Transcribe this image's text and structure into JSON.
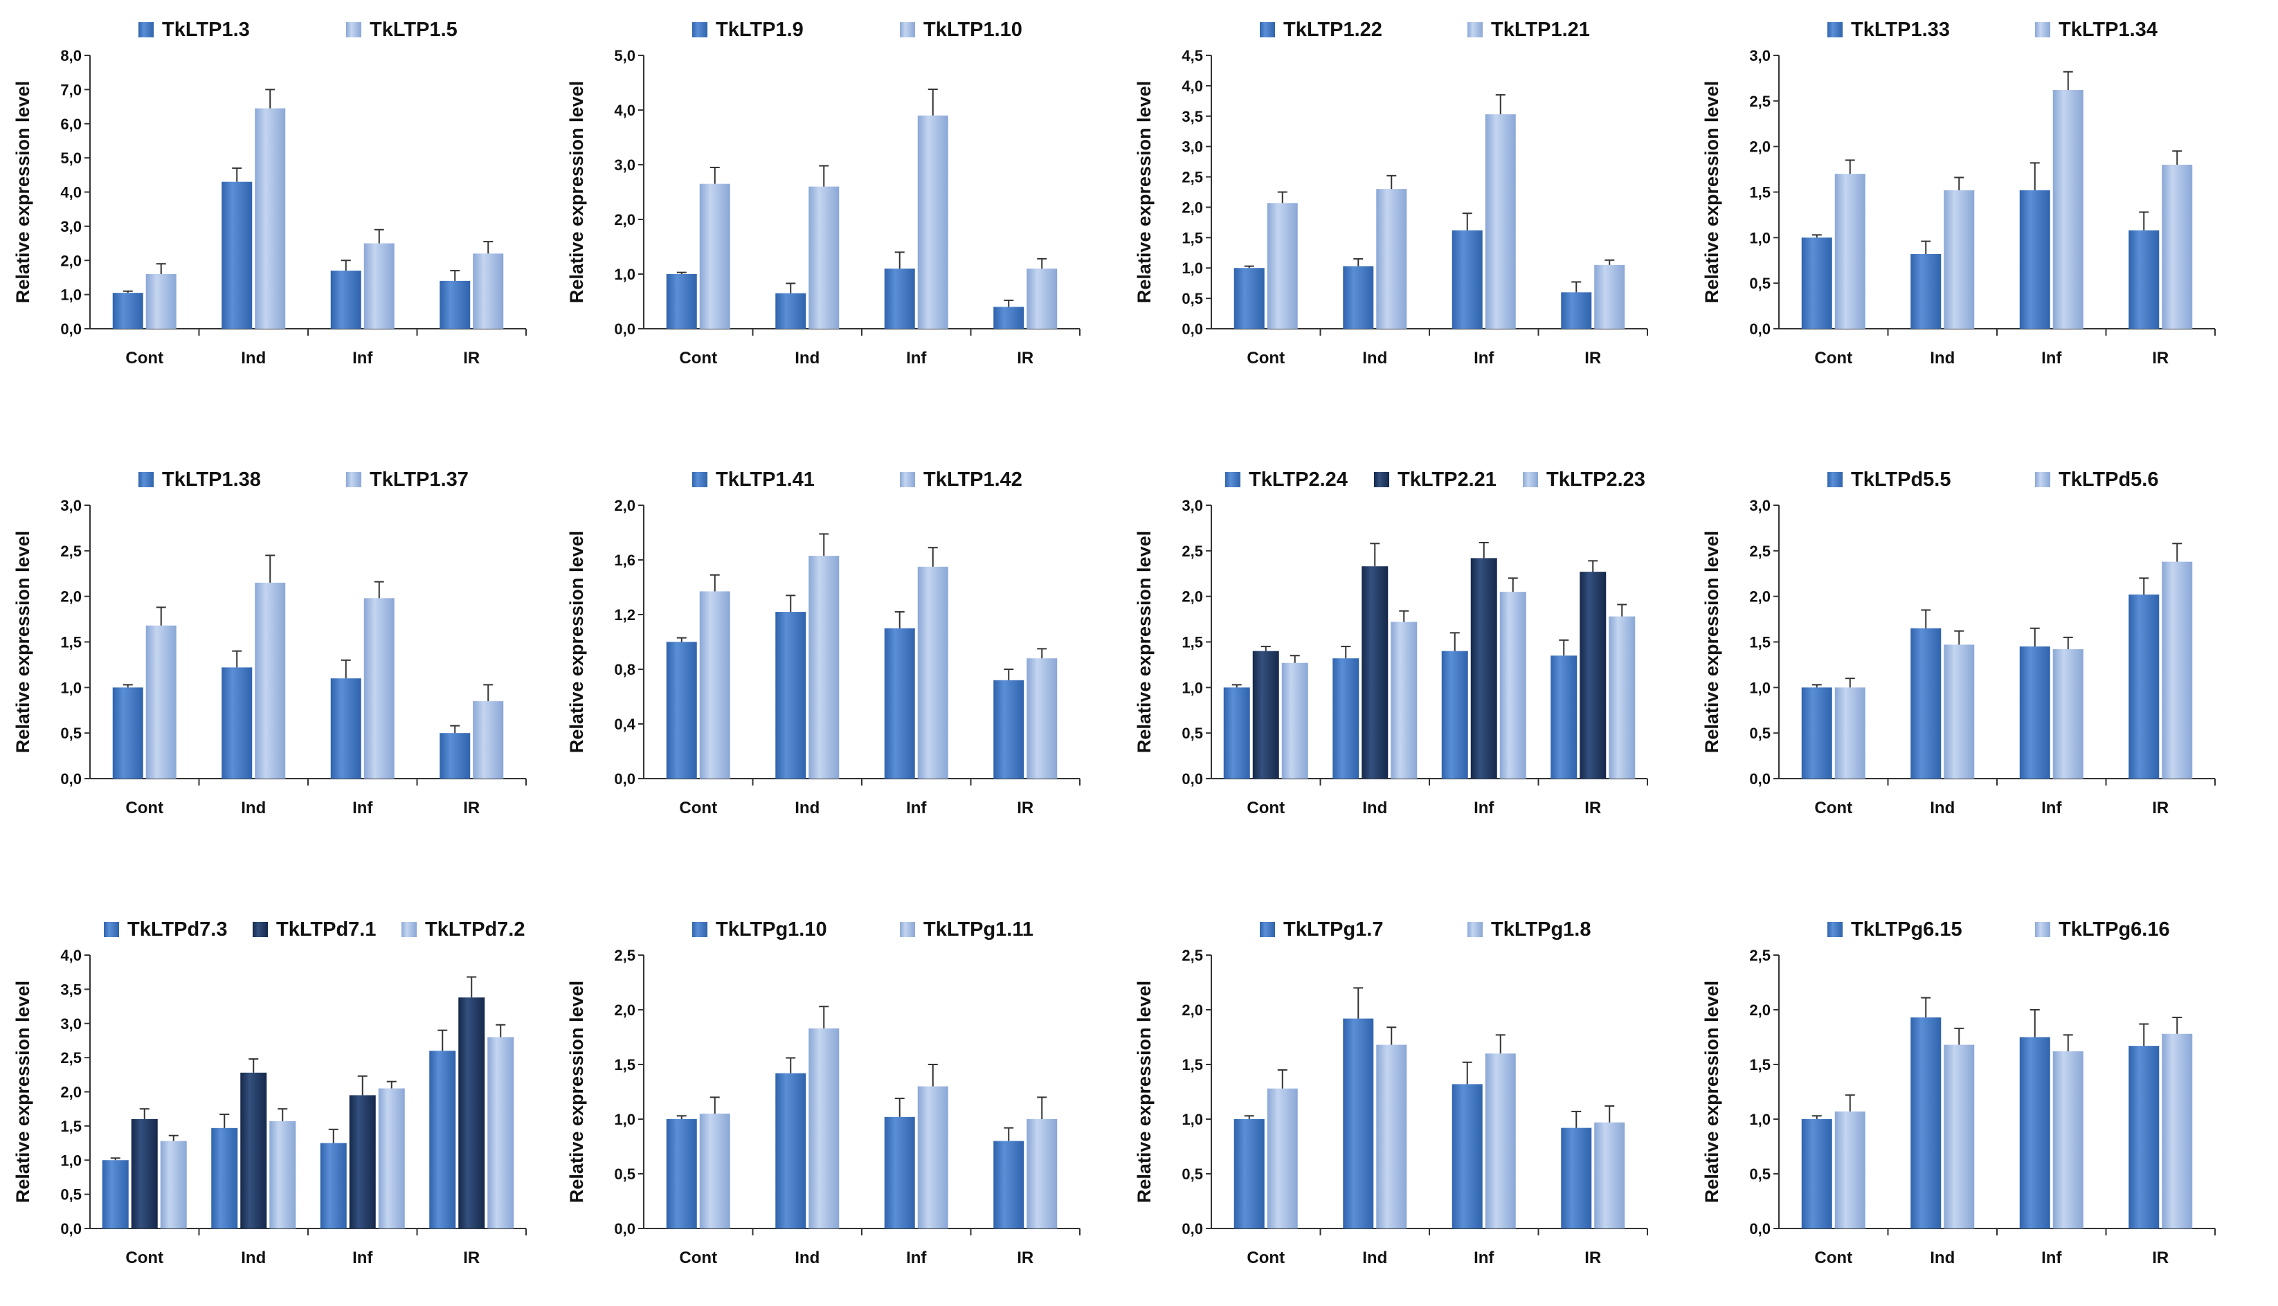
{
  "figure": {
    "colors": {
      "series1": "#2f63ad",
      "series1_light": "#5a8fd6",
      "series2": "#8aa7d6",
      "series2_light": "#c4d5f0",
      "dark": "#15284a",
      "dark_light": "#34507e",
      "axis": "#333333"
    },
    "chart_data": [
      {
        "type": "bar",
        "title": "",
        "ylabel": "Relative expression level",
        "categories": [
          "Cont",
          "Ind",
          "Inf",
          "IR"
        ],
        "ylim": [
          0,
          8
        ],
        "yticks": [
          "0,0",
          "1,0",
          "2,0",
          "3,0",
          "4,0",
          "5,0",
          "6,0",
          "7,0",
          "8,0"
        ],
        "series": [
          {
            "name": "TkLTP1.3",
            "color": "series1",
            "values": [
              1.05,
              4.3,
              1.7,
              1.4
            ],
            "errors": [
              0.05,
              0.4,
              0.3,
              0.3
            ]
          },
          {
            "name": "TkLTP1.5",
            "color": "series2",
            "values": [
              1.6,
              6.45,
              2.5,
              2.2
            ],
            "errors": [
              0.3,
              0.55,
              0.4,
              0.35
            ]
          }
        ]
      },
      {
        "type": "bar",
        "title": "",
        "ylabel": "Relative expression level",
        "categories": [
          "Cont",
          "Ind",
          "Inf",
          "IR"
        ],
        "ylim": [
          0,
          5
        ],
        "yticks": [
          "0,0",
          "1,0",
          "2,0",
          "3,0",
          "4,0",
          "5,0"
        ],
        "series": [
          {
            "name": "TkLTP1.9",
            "color": "series1",
            "values": [
              1.0,
              0.65,
              1.1,
              0.4
            ],
            "errors": [
              0.03,
              0.18,
              0.3,
              0.12
            ]
          },
          {
            "name": "TkLTP1.10",
            "color": "series2",
            "values": [
              2.65,
              2.6,
              3.9,
              1.1
            ],
            "errors": [
              0.3,
              0.38,
              0.48,
              0.18
            ]
          }
        ]
      },
      {
        "type": "bar",
        "title": "",
        "ylabel": "Relative expression level",
        "categories": [
          "Cont",
          "Ind",
          "Inf",
          "IR"
        ],
        "ylim": [
          0,
          4.5
        ],
        "yticks": [
          "0,0",
          "0,5",
          "1,0",
          "1,5",
          "2,0",
          "2,5",
          "3,0",
          "3,5",
          "4,0",
          "4,5"
        ],
        "series": [
          {
            "name": "TkLTP1.22",
            "color": "series1",
            "values": [
              1.0,
              1.03,
              1.62,
              0.6
            ],
            "errors": [
              0.03,
              0.12,
              0.28,
              0.17
            ]
          },
          {
            "name": "TkLTP1.21",
            "color": "series2",
            "values": [
              2.07,
              2.3,
              3.53,
              1.05
            ],
            "errors": [
              0.18,
              0.22,
              0.32,
              0.08
            ]
          }
        ]
      },
      {
        "type": "bar",
        "title": "",
        "ylabel": "Relative expression level",
        "categories": [
          "Cont",
          "Ind",
          "Inf",
          "IR"
        ],
        "ylim": [
          0,
          3.0
        ],
        "yticks": [
          "0,0",
          "0,5",
          "1,0",
          "1,5",
          "2,0",
          "2,5",
          "3,0"
        ],
        "series": [
          {
            "name": "TkLTP1.33",
            "color": "series1",
            "values": [
              1.0,
              0.82,
              1.52,
              1.08
            ],
            "errors": [
              0.03,
              0.14,
              0.3,
              0.2
            ]
          },
          {
            "name": "TkLTP1.34",
            "color": "series2",
            "values": [
              1.7,
              1.52,
              2.62,
              1.8
            ],
            "errors": [
              0.15,
              0.14,
              0.2,
              0.15
            ]
          }
        ]
      },
      {
        "type": "bar",
        "title": "",
        "ylabel": "Relative expression level",
        "categories": [
          "Cont",
          "Ind",
          "Inf",
          "IR"
        ],
        "ylim": [
          0,
          3.0
        ],
        "yticks": [
          "0,0",
          "0,5",
          "1,0",
          "1,5",
          "2,0",
          "2,5",
          "3,0"
        ],
        "series": [
          {
            "name": "TkLTP1.38",
            "color": "series1",
            "values": [
              1.0,
              1.22,
              1.1,
              0.5
            ],
            "errors": [
              0.03,
              0.18,
              0.2,
              0.08
            ]
          },
          {
            "name": "TkLTP1.37",
            "color": "series2",
            "values": [
              1.68,
              2.15,
              1.98,
              0.85
            ],
            "errors": [
              0.2,
              0.3,
              0.18,
              0.18
            ]
          }
        ]
      },
      {
        "type": "bar",
        "title": "",
        "ylabel": "Relative expression level",
        "categories": [
          "Cont",
          "Ind",
          "Inf",
          "IR"
        ],
        "ylim": [
          0,
          2.0
        ],
        "yticks": [
          "0,0",
          "0,4",
          "0,8",
          "1,2",
          "1,6",
          "2,0"
        ],
        "series": [
          {
            "name": "TkLTP1.41",
            "color": "series1",
            "values": [
              1.0,
              1.22,
              1.1,
              0.72
            ],
            "errors": [
              0.03,
              0.12,
              0.12,
              0.08
            ]
          },
          {
            "name": "TkLTP1.42",
            "color": "series2",
            "values": [
              1.37,
              1.63,
              1.55,
              0.88
            ],
            "errors": [
              0.12,
              0.16,
              0.14,
              0.07
            ]
          }
        ]
      },
      {
        "type": "bar",
        "title": "",
        "ylabel": "Relative expression level",
        "categories": [
          "Cont",
          "Ind",
          "Inf",
          "IR"
        ],
        "ylim": [
          0,
          3.0
        ],
        "yticks": [
          "0,0",
          "0,5",
          "1,0",
          "1,5",
          "2,0",
          "2,5",
          "3,0"
        ],
        "series": [
          {
            "name": "TkLTP2.24",
            "color": "series1",
            "values": [
              1.0,
              1.32,
              1.4,
              1.35
            ],
            "errors": [
              0.03,
              0.13,
              0.2,
              0.17
            ]
          },
          {
            "name": "TkLTP2.21",
            "color": "dark",
            "values": [
              1.4,
              2.33,
              2.42,
              2.27
            ],
            "errors": [
              0.05,
              0.25,
              0.17,
              0.12
            ]
          },
          {
            "name": "TkLTP2.23",
            "color": "series2",
            "values": [
              1.27,
              1.72,
              2.05,
              1.78
            ],
            "errors": [
              0.08,
              0.12,
              0.15,
              0.13
            ]
          }
        ]
      },
      {
        "type": "bar",
        "title": "",
        "ylabel": "Relative expression level",
        "categories": [
          "Cont",
          "Ind",
          "Inf",
          "IR"
        ],
        "ylim": [
          0,
          3.0
        ],
        "yticks": [
          "0,0",
          "0,5",
          "1,0",
          "1,5",
          "2,0",
          "2,5",
          "3,0"
        ],
        "series": [
          {
            "name": "TkLTPd5.5",
            "color": "series1",
            "values": [
              1.0,
              1.65,
              1.45,
              2.02
            ],
            "errors": [
              0.03,
              0.2,
              0.2,
              0.18
            ]
          },
          {
            "name": "TkLTPd5.6",
            "color": "series2",
            "values": [
              1.0,
              1.47,
              1.42,
              2.38
            ],
            "errors": [
              0.1,
              0.15,
              0.13,
              0.2
            ]
          }
        ]
      },
      {
        "type": "bar",
        "title": "",
        "ylabel": "Relative expression level",
        "categories": [
          "Cont",
          "Ind",
          "Inf",
          "IR"
        ],
        "ylim": [
          0,
          4.0
        ],
        "yticks": [
          "0,0",
          "0,5",
          "1,0",
          "1,5",
          "2,0",
          "2,5",
          "3,0",
          "3,5",
          "4,0"
        ],
        "series": [
          {
            "name": "TkLTPd7.3",
            "color": "series1",
            "values": [
              1.0,
              1.47,
              1.25,
              2.6
            ],
            "errors": [
              0.03,
              0.2,
              0.2,
              0.3
            ]
          },
          {
            "name": "TkLTPd7.1",
            "color": "dark",
            "values": [
              1.6,
              2.28,
              1.95,
              3.38
            ],
            "errors": [
              0.15,
              0.2,
              0.28,
              0.3
            ]
          },
          {
            "name": "TkLTPd7.2",
            "color": "series2",
            "values": [
              1.28,
              1.57,
              2.05,
              2.8
            ],
            "errors": [
              0.08,
              0.18,
              0.1,
              0.18
            ]
          }
        ]
      },
      {
        "type": "bar",
        "title": "",
        "ylabel": "Relative expression level",
        "categories": [
          "Cont",
          "Ind",
          "Inf",
          "IR"
        ],
        "ylim": [
          0,
          2.5
        ],
        "yticks": [
          "0,0",
          "0,5",
          "1,0",
          "1,5",
          "2,0",
          "2,5"
        ],
        "series": [
          {
            "name": "TkLTPg1.10",
            "color": "series1",
            "values": [
              1.0,
              1.42,
              1.02,
              0.8
            ],
            "errors": [
              0.03,
              0.14,
              0.17,
              0.12
            ]
          },
          {
            "name": "TkLTPg1.11",
            "color": "series2",
            "values": [
              1.05,
              1.83,
              1.3,
              1.0
            ],
            "errors": [
              0.15,
              0.2,
              0.2,
              0.2
            ]
          }
        ]
      },
      {
        "type": "bar",
        "title": "",
        "ylabel": "Relative expression level",
        "categories": [
          "Cont",
          "Ind",
          "Inf",
          "IR"
        ],
        "ylim": [
          0,
          2.5
        ],
        "yticks": [
          "0,0",
          "0,5",
          "1,0",
          "1,5",
          "2,0",
          "2,5"
        ],
        "series": [
          {
            "name": "TkLTPg1.7",
            "color": "series1",
            "values": [
              1.0,
              1.92,
              1.32,
              0.92
            ],
            "errors": [
              0.03,
              0.28,
              0.2,
              0.15
            ]
          },
          {
            "name": "TkLTPg1.8",
            "color": "series2",
            "values": [
              1.28,
              1.68,
              1.6,
              0.97
            ],
            "errors": [
              0.17,
              0.16,
              0.17,
              0.15
            ]
          }
        ]
      },
      {
        "type": "bar",
        "title": "",
        "ylabel": "Relative expression level",
        "categories": [
          "Cont",
          "Ind",
          "Inf",
          "IR"
        ],
        "ylim": [
          0,
          2.5
        ],
        "yticks": [
          "0,0",
          "0,5",
          "1,0",
          "1,5",
          "2,0",
          "2,5"
        ],
        "series": [
          {
            "name": "TkLTPg6.15",
            "color": "series1",
            "values": [
              1.0,
              1.93,
              1.75,
              1.67
            ],
            "errors": [
              0.03,
              0.18,
              0.25,
              0.2
            ]
          },
          {
            "name": "TkLTPg6.16",
            "color": "series2",
            "values": [
              1.07,
              1.68,
              1.62,
              1.78
            ],
            "errors": [
              0.15,
              0.15,
              0.15,
              0.15
            ]
          }
        ]
      }
    ]
  }
}
